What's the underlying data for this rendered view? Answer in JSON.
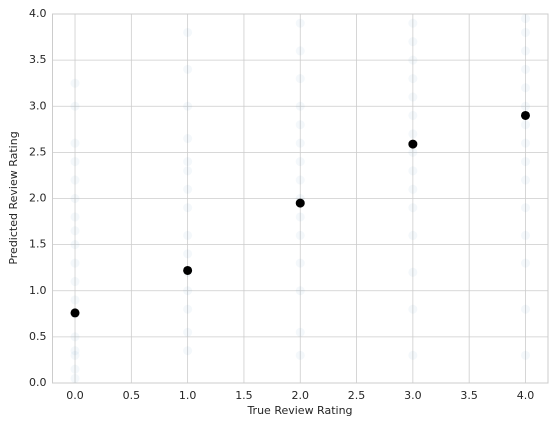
{
  "chart_data": {
    "type": "scatter",
    "x_label": "True Review Rating",
    "y_label": "Predicted Review Rating",
    "xlim": [
      -0.2,
      4.2
    ],
    "ylim": [
      0,
      4
    ],
    "xticks": [
      {
        "value": 0,
        "label": "0.0"
      },
      0.5,
      {
        "value": 1,
        "label": "1.0"
      },
      1.5,
      {
        "value": 2,
        "label": "2.0"
      },
      2.5,
      {
        "value": 3,
        "label": "3.0"
      },
      3.5,
      {
        "value": 4,
        "label": "4.0"
      }
    ],
    "yticks": [
      {
        "value": 0,
        "label": "0.0"
      },
      0.5,
      {
        "value": 1,
        "label": "1.0"
      },
      1.5,
      {
        "value": 2,
        "label": "2.0"
      },
      2.5,
      {
        "value": 3,
        "label": "3.0"
      },
      3.5,
      {
        "value": 4,
        "label": "4.0"
      }
    ],
    "grid": true,
    "series": [
      {
        "color": "#1f77b4",
        "opacity": 0.05,
        "x": [
          0,
          0,
          0,
          0,
          0,
          0,
          0,
          0,
          0,
          0,
          0,
          0,
          0,
          0,
          0,
          0,
          0,
          0,
          1,
          1,
          1,
          1,
          1,
          1,
          1,
          1,
          1,
          1,
          1,
          1,
          1,
          1,
          1,
          2,
          2,
          2,
          2,
          2,
          2,
          2,
          2,
          2,
          2,
          2,
          2,
          2,
          2,
          2,
          3,
          3,
          3,
          3,
          3,
          3,
          3,
          3,
          3,
          3,
          3,
          3,
          3,
          3,
          3,
          4,
          4,
          4,
          4,
          4,
          4,
          4,
          4,
          4,
          4,
          4,
          4,
          4,
          4,
          4
        ],
        "values": [
          0.05,
          0.15,
          0.3,
          0.35,
          0.5,
          0.75,
          0.9,
          1.1,
          1.3,
          1.5,
          1.65,
          1.8,
          2.0,
          2.2,
          2.4,
          2.6,
          3.0,
          3.25,
          0.35,
          0.55,
          0.8,
          1.0,
          1.2,
          1.4,
          1.6,
          1.9,
          2.1,
          2.3,
          2.4,
          2.65,
          3.0,
          3.4,
          3.8,
          0.3,
          0.55,
          1.0,
          1.3,
          1.6,
          1.8,
          2.0,
          2.2,
          2.4,
          2.6,
          2.8,
          3.0,
          3.3,
          3.6,
          3.9,
          0.3,
          0.8,
          1.2,
          1.6,
          1.9,
          2.1,
          2.3,
          2.5,
          2.7,
          2.9,
          3.1,
          3.3,
          3.5,
          3.7,
          3.9,
          0.3,
          0.8,
          1.3,
          1.6,
          1.9,
          2.2,
          2.4,
          2.6,
          2.8,
          3.0,
          3.2,
          3.4,
          3.6,
          3.8,
          3.95
        ]
      },
      {
        "color": "#000000",
        "opacity": 1,
        "x": [
          0,
          1,
          2,
          3,
          4
        ],
        "values": [
          0.76,
          1.22,
          1.95,
          2.59,
          2.9
        ]
      }
    ]
  }
}
